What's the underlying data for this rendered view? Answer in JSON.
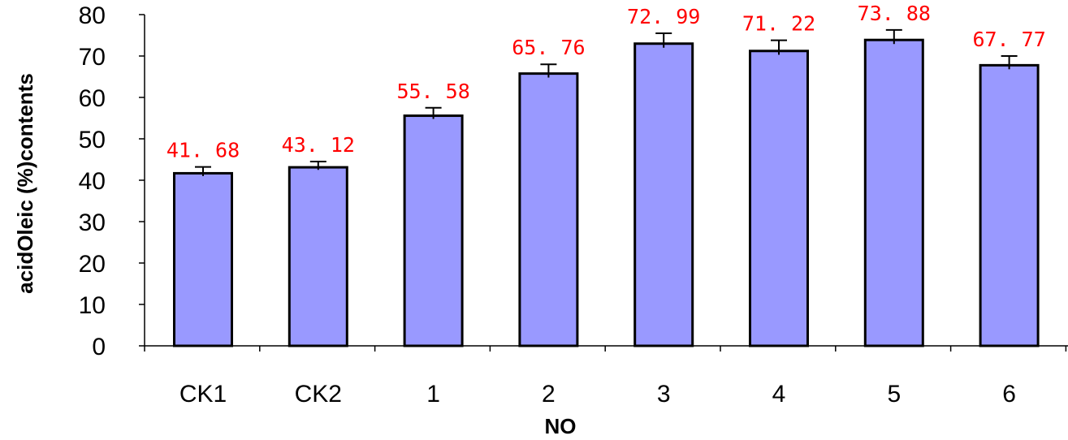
{
  "chart_data": {
    "type": "bar",
    "categories": [
      "CK1",
      "CK2",
      "1",
      "2",
      "3",
      "4",
      "5",
      "6"
    ],
    "values": [
      41.68,
      43.12,
      55.58,
      65.76,
      72.99,
      71.22,
      73.88,
      67.77
    ],
    "value_labels": [
      "41. 68",
      "43. 12",
      "55. 58",
      "65. 76",
      "72. 99",
      "71. 22",
      "73. 88",
      "67. 77"
    ],
    "error_upper": [
      43.2,
      44.5,
      57.5,
      68.0,
      75.5,
      73.8,
      76.3,
      70.0
    ],
    "error_lower": [
      41.0,
      42.5,
      54.8,
      64.8,
      72.0,
      70.3,
      72.9,
      66.8
    ],
    "xlabel": "NO",
    "ylabel": "acidOleic (%)contents",
    "ylim": [
      0,
      80
    ],
    "yticks": [
      "0",
      "10",
      "20",
      "30",
      "40",
      "50",
      "60",
      "70",
      "80"
    ],
    "grid": false,
    "colors": {
      "bar_fill": "#9999ff",
      "bar_stroke": "#000000",
      "data_label": "#ff0000"
    }
  }
}
